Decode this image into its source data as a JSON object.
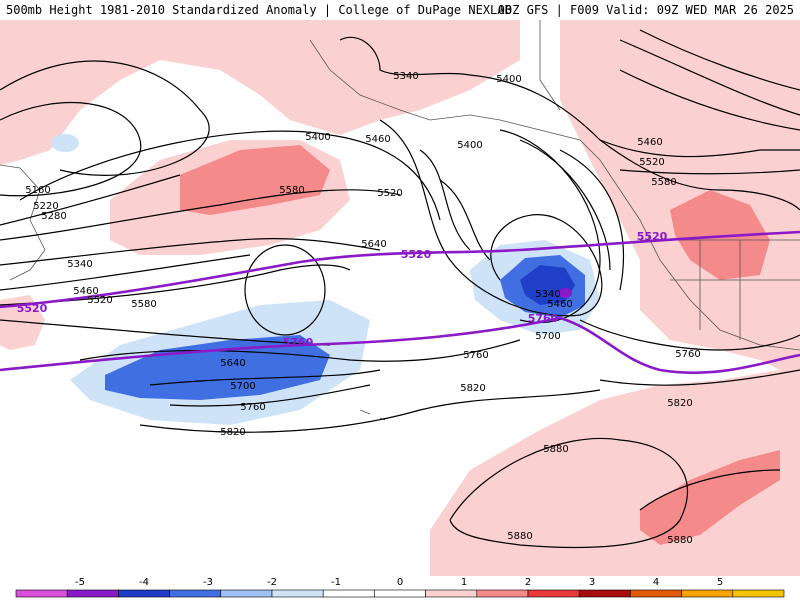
{
  "header": {
    "title_left": "500mb Height 1981-2010 Standardized Anomaly | College of DuPage NEXLAB",
    "title_right": "00Z GFS | F009 Valid: 09Z WED MAR 26 2025"
  },
  "contour_labels": {
    "black": [
      {
        "text": "5340",
        "id": "c1"
      },
      {
        "text": "5400",
        "id": "c2"
      },
      {
        "text": "5400",
        "id": "c3"
      },
      {
        "text": "5460",
        "id": "c4"
      },
      {
        "text": "5400",
        "id": "c5"
      },
      {
        "text": "5460",
        "id": "c6"
      },
      {
        "text": "5520",
        "id": "c7"
      },
      {
        "text": "5580",
        "id": "c8"
      },
      {
        "text": "5520",
        "id": "c9"
      },
      {
        "text": "5580",
        "id": "c10"
      },
      {
        "text": "5160",
        "id": "c11"
      },
      {
        "text": "5220",
        "id": "c12"
      },
      {
        "text": "5280",
        "id": "c13"
      },
      {
        "text": "5340",
        "id": "c14"
      },
      {
        "text": "5460",
        "id": "c15"
      },
      {
        "text": "5520",
        "id": "c16"
      },
      {
        "text": "5580",
        "id": "c17"
      },
      {
        "text": "5640",
        "id": "c18"
      },
      {
        "text": "5340",
        "id": "c19"
      },
      {
        "text": "5460",
        "id": "c20"
      },
      {
        "text": "5700",
        "id": "c21"
      },
      {
        "text": "5640",
        "id": "c22"
      },
      {
        "text": "5700",
        "id": "c23"
      },
      {
        "text": "5760",
        "id": "c24"
      },
      {
        "text": "5820",
        "id": "c25"
      },
      {
        "text": "5760",
        "id": "c26"
      },
      {
        "text": "5820",
        "id": "c27"
      },
      {
        "text": "5760",
        "id": "c28"
      },
      {
        "text": "5820",
        "id": "c29"
      },
      {
        "text": "5880",
        "id": "c30"
      },
      {
        "text": "5880",
        "id": "c31"
      },
      {
        "text": "5880",
        "id": "c32"
      }
    ],
    "purple": [
      {
        "text": "5520",
        "id": "p1"
      },
      {
        "text": "5520",
        "id": "p2"
      },
      {
        "text": "5520",
        "id": "p3"
      },
      {
        "text": "5760",
        "id": "p4"
      },
      {
        "text": "5760",
        "id": "p5"
      }
    ]
  },
  "colorbar": {
    "ticks": [
      "-5",
      "-4",
      "-3",
      "-2",
      "-1",
      "0",
      "1",
      "2",
      "3",
      "4",
      "5"
    ],
    "colors": [
      "#d94fd9",
      "#8a19c8",
      "#1f3fc8",
      "#3f6fe0",
      "#9ec3f2",
      "#cfe3f8",
      "#ffffff",
      "#ffffff",
      "#fbd0d0",
      "#f48a8a",
      "#e83a3a",
      "#a80e0e",
      "#e35a00",
      "#f5a300",
      "#f5c400"
    ]
  }
}
